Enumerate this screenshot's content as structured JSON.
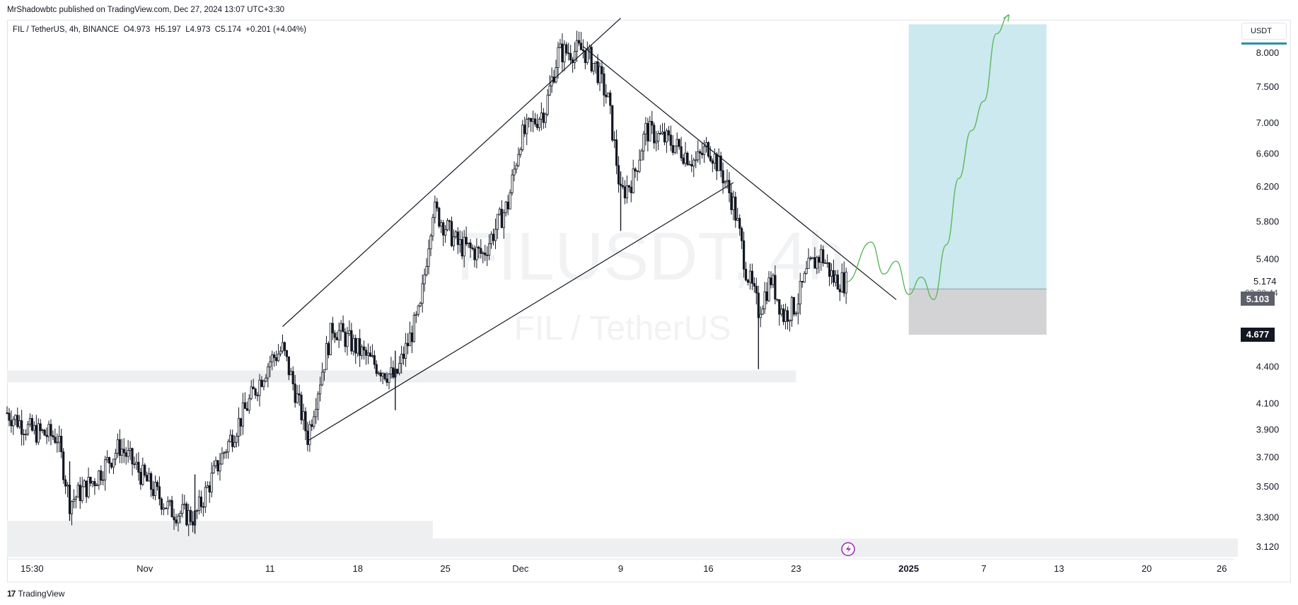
{
  "header": {
    "published": "MrShadowbtc published on TradingView.com, Dec 27, 2024 13:07 UTC+3:30"
  },
  "legend": {
    "symbol": "FIL / TetherUS, 4h, BINANCE",
    "open": "O4.973",
    "high": "H5.197",
    "low": "L4.973",
    "close": "C5.174",
    "change": "+0.201 (+4.04%)"
  },
  "watermark": {
    "ticker": "FILUSDT, 4h",
    "name": "FIL / TetherUS"
  },
  "price_axis": {
    "currency": "USDT",
    "ticks": [
      "8.000",
      "7.500",
      "7.000",
      "6.600",
      "6.200",
      "5.800",
      "5.400",
      "4.400",
      "4.100",
      "3.900",
      "3.700",
      "3.500",
      "3.300",
      "3.120"
    ],
    "last_price": "5.174",
    "countdown": "02:22:44",
    "tag_1": "5.103",
    "tag_2": "4.677"
  },
  "time_axis": {
    "labels": [
      "15:30",
      "Nov",
      "11",
      "18",
      "25",
      "Dec",
      "9",
      "16",
      "23",
      "2025",
      "7",
      "13",
      "20",
      "26"
    ]
  },
  "footer": {
    "brand": "TradingView"
  },
  "colors": {
    "candle": "#131722",
    "target_zone": "#cbe9ee",
    "stop_zone": "#d3d3d5",
    "zone_band": "#eeeff1",
    "projection": "#5cb85c",
    "tag_1_bg": "#5d606b",
    "tag_2_bg": "#131722",
    "alert_icon": "#9c27b0"
  },
  "chart_data": {
    "type": "candlestick",
    "timeframe": "4h",
    "x_range": [
      "2024-10-21",
      "2025-01-27"
    ],
    "ylim": [
      3.05,
      8.5
    ],
    "y_scale": "log",
    "grid": false,
    "close_path": [
      {
        "date": "2024-10-21",
        "price": 4.03
      },
      {
        "date": "2024-10-23",
        "price": 3.89
      },
      {
        "date": "2024-10-25",
        "price": 3.85
      },
      {
        "date": "2024-10-26",
        "price": 3.4
      },
      {
        "date": "2024-10-28",
        "price": 3.55
      },
      {
        "date": "2024-10-30",
        "price": 3.78
      },
      {
        "date": "2024-11-01",
        "price": 3.55
      },
      {
        "date": "2024-11-03",
        "price": 3.35
      },
      {
        "date": "2024-11-05",
        "price": 3.3
      },
      {
        "date": "2024-11-07",
        "price": 3.68
      },
      {
        "date": "2024-11-09",
        "price": 4.05
      },
      {
        "date": "2024-11-11",
        "price": 4.45
      },
      {
        "date": "2024-11-12",
        "price": 4.55
      },
      {
        "date": "2024-11-14",
        "price": 3.85
      },
      {
        "date": "2024-11-16",
        "price": 4.75
      },
      {
        "date": "2024-11-19",
        "price": 4.45
      },
      {
        "date": "2024-11-21",
        "price": 4.3
      },
      {
        "date": "2024-11-23",
        "price": 4.9
      },
      {
        "date": "2024-11-24",
        "price": 5.95
      },
      {
        "date": "2024-11-26",
        "price": 5.55
      },
      {
        "date": "2024-11-28",
        "price": 5.45
      },
      {
        "date": "2024-11-30",
        "price": 6.0
      },
      {
        "date": "2024-12-01",
        "price": 6.8
      },
      {
        "date": "2024-12-03",
        "price": 7.2
      },
      {
        "date": "2024-12-04",
        "price": 8.0
      },
      {
        "date": "2024-12-06",
        "price": 8.05
      },
      {
        "date": "2024-12-07",
        "price": 7.8
      },
      {
        "date": "2024-12-08",
        "price": 7.3
      },
      {
        "date": "2024-12-09",
        "price": 6.1
      },
      {
        "date": "2024-12-10",
        "price": 6.3
      },
      {
        "date": "2024-12-11",
        "price": 6.9
      },
      {
        "date": "2024-12-13",
        "price": 6.75
      },
      {
        "date": "2024-12-15",
        "price": 6.5
      },
      {
        "date": "2024-12-16",
        "price": 6.7
      },
      {
        "date": "2024-12-17",
        "price": 6.4
      },
      {
        "date": "2024-12-18",
        "price": 6.0
      },
      {
        "date": "2024-12-19",
        "price": 5.3
      },
      {
        "date": "2024-12-20",
        "price": 4.9
      },
      {
        "date": "2024-12-21",
        "price": 5.2
      },
      {
        "date": "2024-12-22",
        "price": 4.85
      },
      {
        "date": "2024-12-23",
        "price": 4.95
      },
      {
        "date": "2024-12-24",
        "price": 5.3
      },
      {
        "date": "2024-12-25",
        "price": 5.45
      },
      {
        "date": "2024-12-26",
        "price": 5.2
      },
      {
        "date": "2024-12-27",
        "price": 5.17
      }
    ],
    "spike_lows": [
      {
        "date": "2024-10-26",
        "price": 3.28
      },
      {
        "date": "2024-11-05",
        "price": 3.2
      },
      {
        "date": "2024-11-21",
        "price": 4.05
      },
      {
        "date": "2024-12-09",
        "price": 5.7
      },
      {
        "date": "2024-12-20",
        "price": 4.38
      }
    ],
    "trendlines": [
      {
        "name": "channel-top",
        "from": {
          "date": "2024-11-12",
          "price": 4.75
        },
        "to": {
          "date": "2024-12-09",
          "price": 8.55
        }
      },
      {
        "name": "channel-bottom",
        "from": {
          "date": "2024-11-14",
          "price": 3.82
        },
        "to": {
          "date": "2024-12-18",
          "price": 6.25
        }
      },
      {
        "name": "descending-resistance",
        "from": {
          "date": "2024-12-06",
          "price": 8.1
        },
        "to": {
          "date": "2024-12-31",
          "price": 5.0
        }
      }
    ],
    "zones": [
      {
        "name": "support-upper",
        "from": "2024-10-21",
        "to": "2024-12-23",
        "low": 4.27,
        "high": 4.37
      },
      {
        "name": "support-lower",
        "from": "2024-10-21",
        "to": "2024-11-24",
        "low": 3.15,
        "high": 3.28
      }
    ],
    "position": {
      "type": "long",
      "from": "2025-01-01",
      "to": "2025-01-12",
      "entry": 5.103,
      "target": 8.45,
      "stop": 4.677
    },
    "projection_path": [
      {
        "date": "2024-12-27",
        "price": 5.17
      },
      {
        "date": "2024-12-29",
        "price": 5.58
      },
      {
        "date": "2024-12-30",
        "price": 5.25
      },
      {
        "date": "2024-12-31",
        "price": 5.38
      },
      {
        "date": "2025-01-01",
        "price": 5.05
      },
      {
        "date": "2025-01-02",
        "price": 5.22
      },
      {
        "date": "2025-01-03",
        "price": 5.0
      },
      {
        "date": "2025-01-04",
        "price": 5.55
      },
      {
        "date": "2025-01-05",
        "price": 6.3
      },
      {
        "date": "2025-01-06",
        "price": 6.9
      },
      {
        "date": "2025-01-07",
        "price": 7.3
      },
      {
        "date": "2025-01-08",
        "price": 8.3
      },
      {
        "date": "2025-01-09",
        "price": 8.6
      }
    ]
  }
}
